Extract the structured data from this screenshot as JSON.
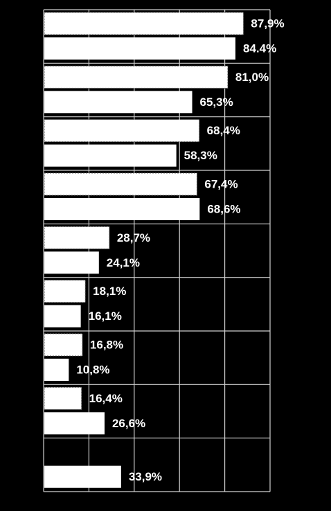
{
  "chart_data": {
    "type": "bar",
    "orientation": "horizontal",
    "categories": [
      null,
      null,
      null,
      null,
      null,
      null,
      null,
      null,
      null
    ],
    "series": [
      {
        "color": "#ffffff",
        "border_style": "dotted",
        "values": [
          87.9,
          81.0,
          68.4,
          67.4,
          28.7,
          18.1,
          16.8,
          16.4,
          null
        ],
        "value_labels": [
          "87,9%",
          "81,0%",
          "68,4%",
          "67,4%",
          "28,7%",
          "18,1%",
          "16,8%",
          "16,4%",
          null
        ]
      },
      {
        "color": "#ffffff",
        "border_style": "solid",
        "values": [
          84.4,
          65.3,
          58.3,
          68.6,
          24.1,
          16.1,
          10.8,
          26.6,
          33.9
        ],
        "value_labels": [
          "84.4%",
          "65,3%",
          "58,3%",
          "68,6%",
          "24,1%",
          "16,1%",
          "10,8%",
          "26,6%",
          "33,9%"
        ]
      }
    ],
    "xlim": [
      0,
      100
    ],
    "xticks": [
      0,
      20,
      40,
      60,
      80,
      100
    ],
    "grid": true
  }
}
